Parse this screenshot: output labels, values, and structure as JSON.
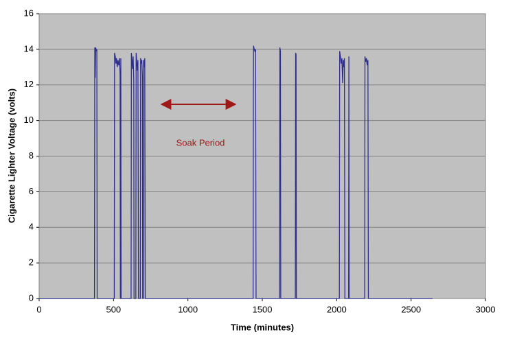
{
  "chart_data": {
    "type": "line",
    "xlabel": "Time (minutes)",
    "ylabel": "Cigarette Lighter Voltage (volts)",
    "annotations": [
      "Soak Period"
    ],
    "annotation_color": "#a01818",
    "xlim": [
      0,
      3000
    ],
    "xticks": [
      0,
      500,
      1000,
      1500,
      2000,
      2500,
      3000
    ],
    "ylim": [
      0,
      16
    ],
    "yticks": [
      0,
      2,
      4,
      6,
      8,
      10,
      12,
      14,
      16
    ],
    "grid": true,
    "series": [
      {
        "color": "#2e2e8f",
        "x": [
          0,
          372,
          374,
          377,
          380,
          385,
          388,
          390,
          505,
          507,
          512,
          516,
          520,
          525,
          530,
          535,
          540,
          544,
          546,
          548,
          549,
          551,
          618,
          620,
          624,
          628,
          632,
          636,
          638,
          650,
          652,
          656,
          660,
          664,
          668,
          680,
          682,
          686,
          690,
          694,
          696,
          700,
          702,
          706,
          710,
          713,
          1438,
          1440,
          1441,
          1446,
          1450,
          1455,
          1458,
          1616,
          1618,
          1622,
          1624,
          1722,
          1724,
          1727,
          1729,
          2018,
          2020,
          2025,
          2030,
          2035,
          2040,
          2044,
          2048,
          2052,
          2055,
          2080,
          2082,
          2084,
          2188,
          2190,
          2195,
          2200,
          2205,
          2210,
          2213,
          2645
        ],
        "values": [
          0,
          0,
          14.1,
          12.4,
          14.1,
          13.9,
          14.0,
          0,
          0,
          13.8,
          13.6,
          13.2,
          13.5,
          13.0,
          13.4,
          13.1,
          13.5,
          12.6,
          0,
          0,
          13.5,
          0,
          0,
          13.8,
          13.4,
          12.9,
          13.6,
          12.3,
          0,
          0,
          13.8,
          13.3,
          12.8,
          13.4,
          0,
          0,
          13.5,
          13.2,
          13.4,
          12.5,
          0,
          0,
          13.4,
          13.0,
          13.5,
          0,
          0,
          12.2,
          14.2,
          14.0,
          13.9,
          14.0,
          0,
          0,
          14.1,
          13.9,
          0,
          0,
          13.8,
          13.7,
          0,
          0,
          13.9,
          13.6,
          13.2,
          13.5,
          12.1,
          13.4,
          13.0,
          13.5,
          0,
          0,
          13.6,
          0,
          0,
          13.6,
          13.3,
          13.5,
          13.1,
          13.4,
          0,
          0
        ]
      }
    ]
  }
}
